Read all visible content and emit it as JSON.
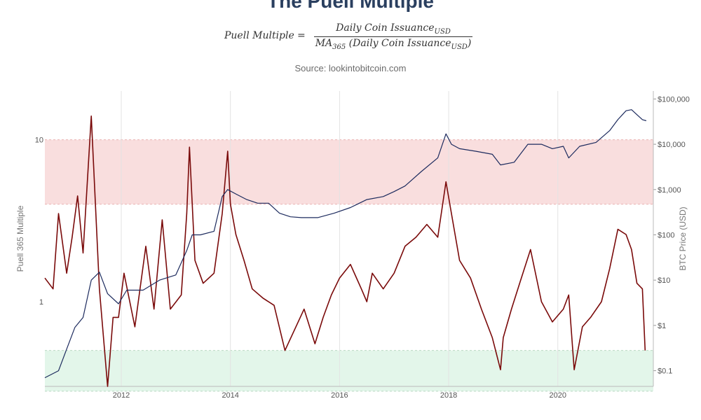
{
  "title": "The Puell Multiple",
  "formula": {
    "lhs": "Puell Multiple",
    "eq": "=",
    "numerator": "Daily Coin Issuance",
    "numerator_sub": "USD",
    "denominator_pre": "MA",
    "denominator_pre_sub": "365",
    "denominator_mid": " (Daily Coin Issuance",
    "denominator_sub": "USD",
    "denominator_post": ")"
  },
  "source": "Source: lookintobitcoin.com",
  "chart_data": {
    "type": "line",
    "x_ticks": [
      "2012",
      "2014",
      "2016",
      "2018",
      "2020"
    ],
    "y_left": {
      "label": "Puell 365 Multiple",
      "scale": "log",
      "ticks": [
        "10",
        "1"
      ],
      "range": [
        0.3,
        20
      ]
    },
    "y_right": {
      "label": "BTC Price (USD)",
      "scale": "log",
      "ticks": [
        "$100,000",
        "$10,000",
        "$1,000",
        "$100",
        "$10",
        "$1",
        "$0.1"
      ],
      "range": [
        0.045,
        150000
      ]
    },
    "zones": [
      {
        "name": "red-zone",
        "from": 4,
        "to": 10,
        "color": "#f9dede",
        "edge": "#e9b3b3"
      },
      {
        "name": "green-zone",
        "from": 0.28,
        "to": 0.5,
        "color": "#e3f6ea",
        "edge": "#b9d9c2"
      }
    ],
    "grid": true,
    "series": [
      {
        "axis": "left",
        "color": "#7a0a0a",
        "x": [
          2010.6,
          2010.75,
          2010.85,
          2011.0,
          2011.1,
          2011.2,
          2011.3,
          2011.45,
          2011.6,
          2011.75,
          2011.85,
          2011.95,
          2012.05,
          2012.25,
          2012.45,
          2012.6,
          2012.75,
          2012.9,
          2013.1,
          2013.2,
          2013.25,
          2013.35,
          2013.5,
          2013.7,
          2013.85,
          2013.95,
          2014.0,
          2014.1,
          2014.25,
          2014.4,
          2014.6,
          2014.8,
          2015.0,
          2015.2,
          2015.35,
          2015.55,
          2015.7,
          2015.85,
          2016.0,
          2016.2,
          2016.4,
          2016.5,
          2016.6,
          2016.8,
          2017.0,
          2017.2,
          2017.4,
          2017.6,
          2017.8,
          2017.95,
          2018.05,
          2018.2,
          2018.4,
          2018.6,
          2018.8,
          2018.95,
          2019.0,
          2019.15,
          2019.3,
          2019.5,
          2019.7,
          2019.9,
          2020.1,
          2020.2,
          2020.3,
          2020.45,
          2020.6,
          2020.8,
          2020.95,
          2021.1,
          2021.25,
          2021.35,
          2021.45,
          2021.55,
          2021.6
        ],
        "y": [
          1.4,
          1.2,
          3.5,
          1.5,
          2.5,
          4.5,
          2.0,
          14,
          1.2,
          0.28,
          0.8,
          0.8,
          1.5,
          0.7,
          2.2,
          0.9,
          3.2,
          0.9,
          1.1,
          3.5,
          9.0,
          1.8,
          1.3,
          1.5,
          3.5,
          8.5,
          4.0,
          2.6,
          1.8,
          1.2,
          1.05,
          0.95,
          0.5,
          0.7,
          0.9,
          0.55,
          0.8,
          1.1,
          1.4,
          1.7,
          1.2,
          1.0,
          1.5,
          1.2,
          1.5,
          2.2,
          2.5,
          3.0,
          2.5,
          5.5,
          3.5,
          1.8,
          1.4,
          0.9,
          0.6,
          0.38,
          0.6,
          0.9,
          1.3,
          2.1,
          1.0,
          0.75,
          0.9,
          1.1,
          0.38,
          0.7,
          0.8,
          1.0,
          1.6,
          2.8,
          2.6,
          2.1,
          1.3,
          1.2,
          0.5
        ]
      },
      {
        "axis": "right",
        "color": "#1d2b5e",
        "x": [
          2010.6,
          2010.85,
          2011.0,
          2011.15,
          2011.3,
          2011.45,
          2011.6,
          2011.75,
          2011.95,
          2012.1,
          2012.4,
          2012.7,
          2013.0,
          2013.2,
          2013.3,
          2013.45,
          2013.7,
          2013.85,
          2013.95,
          2014.1,
          2014.3,
          2014.5,
          2014.7,
          2014.9,
          2015.1,
          2015.3,
          2015.6,
          2015.9,
          2016.2,
          2016.5,
          2016.8,
          2017.0,
          2017.2,
          2017.5,
          2017.8,
          2017.95,
          2018.05,
          2018.2,
          2018.5,
          2018.8,
          2018.95,
          2019.2,
          2019.45,
          2019.7,
          2019.9,
          2020.1,
          2020.2,
          2020.4,
          2020.7,
          2020.95,
          2021.1,
          2021.25,
          2021.35,
          2021.45,
          2021.55,
          2021.62
        ],
        "y": [
          0.07,
          0.1,
          0.3,
          0.9,
          1.5,
          10,
          15,
          5,
          3,
          6,
          6,
          10,
          13,
          45,
          100,
          100,
          120,
          700,
          1000,
          800,
          600,
          500,
          500,
          300,
          250,
          240,
          240,
          300,
          400,
          600,
          700,
          900,
          1200,
          2500,
          5000,
          17000,
          10000,
          8000,
          7000,
          6000,
          3500,
          4000,
          10000,
          10000,
          8000,
          9000,
          5000,
          9000,
          11000,
          20000,
          35000,
          55000,
          58000,
          45000,
          35000,
          33000
        ]
      }
    ]
  }
}
